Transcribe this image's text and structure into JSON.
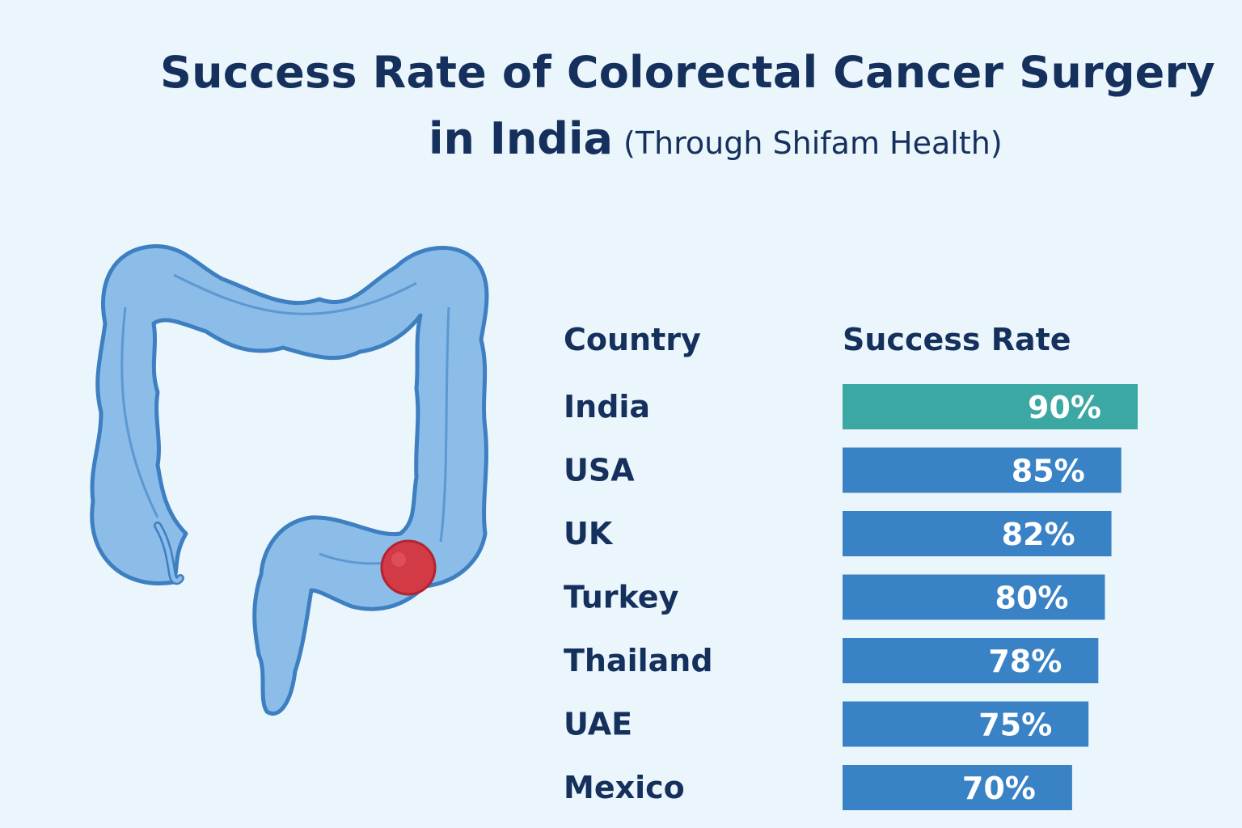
{
  "title": {
    "line1": "Success Rate of Colorectal Cancer Surgery",
    "line2": "in India",
    "subtitle": "(Through Shifam Health)"
  },
  "columns": {
    "country": "Country",
    "rate": "Success Rate"
  },
  "colors": {
    "background": "#eaf6fc",
    "text": "#15305c",
    "highlight_bar": "#3ba8a4",
    "bar": "#3a82c6",
    "colon_fill": "#8bbde8",
    "colon_stroke": "#3d7fc1",
    "tumor": "#d23a45"
  },
  "illustration": {
    "icon": "colon-with-tumor-icon"
  },
  "chart_data": {
    "type": "bar",
    "orientation": "horizontal",
    "categories": [
      "India",
      "USA",
      "UK",
      "Turkey",
      "Thailand",
      "UAE",
      "Mexico"
    ],
    "values": [
      90,
      85,
      82,
      80,
      78,
      75,
      70
    ],
    "value_labels": [
      "90%",
      "85%",
      "82%",
      "80%",
      "78%",
      "75%",
      "70%"
    ],
    "highlight": "India",
    "xlim": [
      0,
      100
    ],
    "grid": false,
    "legend": "none"
  }
}
